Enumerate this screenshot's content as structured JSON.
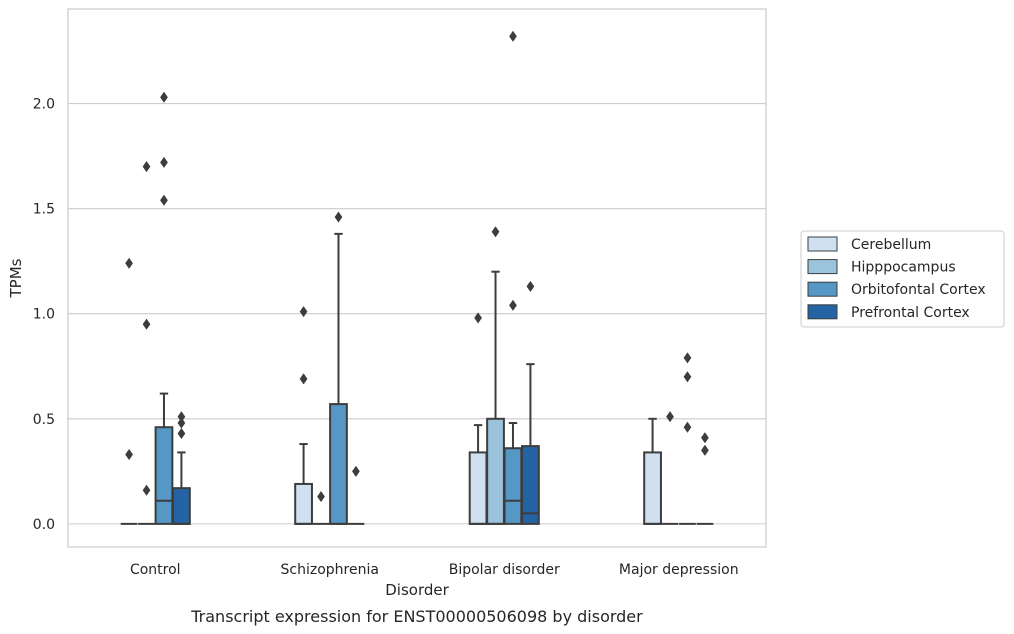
{
  "chart_data": {
    "type": "box",
    "caption": "Transcript expression for ENST00000506098 by disorder",
    "xlabel": "Disorder",
    "ylabel": "TPMs",
    "ylim": [
      -0.11,
      2.45
    ],
    "yticks": [
      0.0,
      0.5,
      1.0,
      1.5,
      2.0
    ],
    "ytick_labels": [
      "0.0",
      "0.5",
      "1.0",
      "1.5",
      "2.0"
    ],
    "grid": "horizontal",
    "legend_position": "right",
    "categories": [
      "Control",
      "Schizophrenia",
      "Bipolar disorder",
      "Major depression"
    ],
    "series": [
      {
        "name": "Cerebellum",
        "color": "#d0e0f0",
        "boxes": [
          {
            "q1": 0.0,
            "median": 0.0,
            "q3": 0.0,
            "whisker_low": 0.0,
            "whisker_high": 0.0,
            "outliers": [
              0.33,
              1.24
            ]
          },
          {
            "q1": 0.0,
            "median": 0.0,
            "q3": 0.19,
            "whisker_low": 0.0,
            "whisker_high": 0.38,
            "outliers": [
              0.69,
              1.01
            ]
          },
          {
            "q1": 0.0,
            "median": 0.0,
            "q3": 0.34,
            "whisker_low": 0.0,
            "whisker_high": 0.47,
            "outliers": [
              0.98
            ]
          },
          {
            "q1": 0.0,
            "median": 0.0,
            "q3": 0.34,
            "whisker_low": 0.0,
            "whisker_high": 0.5,
            "outliers": []
          }
        ]
      },
      {
        "name": "Hipppocampus",
        "color": "#9cc3dc",
        "boxes": [
          {
            "q1": 0.0,
            "median": 0.0,
            "q3": 0.0,
            "whisker_low": 0.0,
            "whisker_high": 0.0,
            "outliers": [
              0.16,
              0.95,
              1.7
            ]
          },
          {
            "q1": 0.0,
            "median": 0.0,
            "q3": 0.0,
            "whisker_low": 0.0,
            "whisker_high": 0.0,
            "outliers": [
              0.13
            ]
          },
          {
            "q1": 0.0,
            "median": 0.0,
            "q3": 0.5,
            "whisker_low": 0.0,
            "whisker_high": 1.2,
            "outliers": [
              1.39
            ]
          },
          {
            "q1": 0.0,
            "median": 0.0,
            "q3": 0.0,
            "whisker_low": 0.0,
            "whisker_high": 0.0,
            "outliers": [
              0.51
            ]
          }
        ]
      },
      {
        "name": "Orbitofontal Cortex",
        "color": "#5597c5",
        "boxes": [
          {
            "q1": 0.0,
            "median": 0.11,
            "q3": 0.46,
            "whisker_low": 0.0,
            "whisker_high": 0.62,
            "outliers": [
              1.54,
              1.72,
              2.03
            ]
          },
          {
            "q1": 0.0,
            "median": 0.0,
            "q3": 0.57,
            "whisker_low": 0.0,
            "whisker_high": 1.38,
            "outliers": [
              1.46
            ]
          },
          {
            "q1": 0.0,
            "median": 0.11,
            "q3": 0.36,
            "whisker_low": 0.0,
            "whisker_high": 0.48,
            "outliers": [
              1.04,
              2.32
            ]
          },
          {
            "q1": 0.0,
            "median": 0.0,
            "q3": 0.0,
            "whisker_low": 0.0,
            "whisker_high": 0.0,
            "outliers": [
              0.46,
              0.7,
              0.79
            ]
          }
        ]
      },
      {
        "name": "Prefrontal Cortex",
        "color": "#2464a4",
        "boxes": [
          {
            "q1": 0.0,
            "median": 0.0,
            "q3": 0.17,
            "whisker_low": 0.0,
            "whisker_high": 0.34,
            "outliers": [
              0.43,
              0.48,
              0.51
            ]
          },
          {
            "q1": 0.0,
            "median": 0.0,
            "q3": 0.0,
            "whisker_low": 0.0,
            "whisker_high": 0.0,
            "outliers": [
              0.25
            ]
          },
          {
            "q1": 0.0,
            "median": 0.05,
            "q3": 0.37,
            "whisker_low": 0.0,
            "whisker_high": 0.76,
            "outliers": [
              1.13
            ]
          },
          {
            "q1": 0.0,
            "median": 0.0,
            "q3": 0.0,
            "whisker_low": 0.0,
            "whisker_high": 0.0,
            "outliers": [
              0.35,
              0.41
            ]
          }
        ]
      }
    ]
  }
}
